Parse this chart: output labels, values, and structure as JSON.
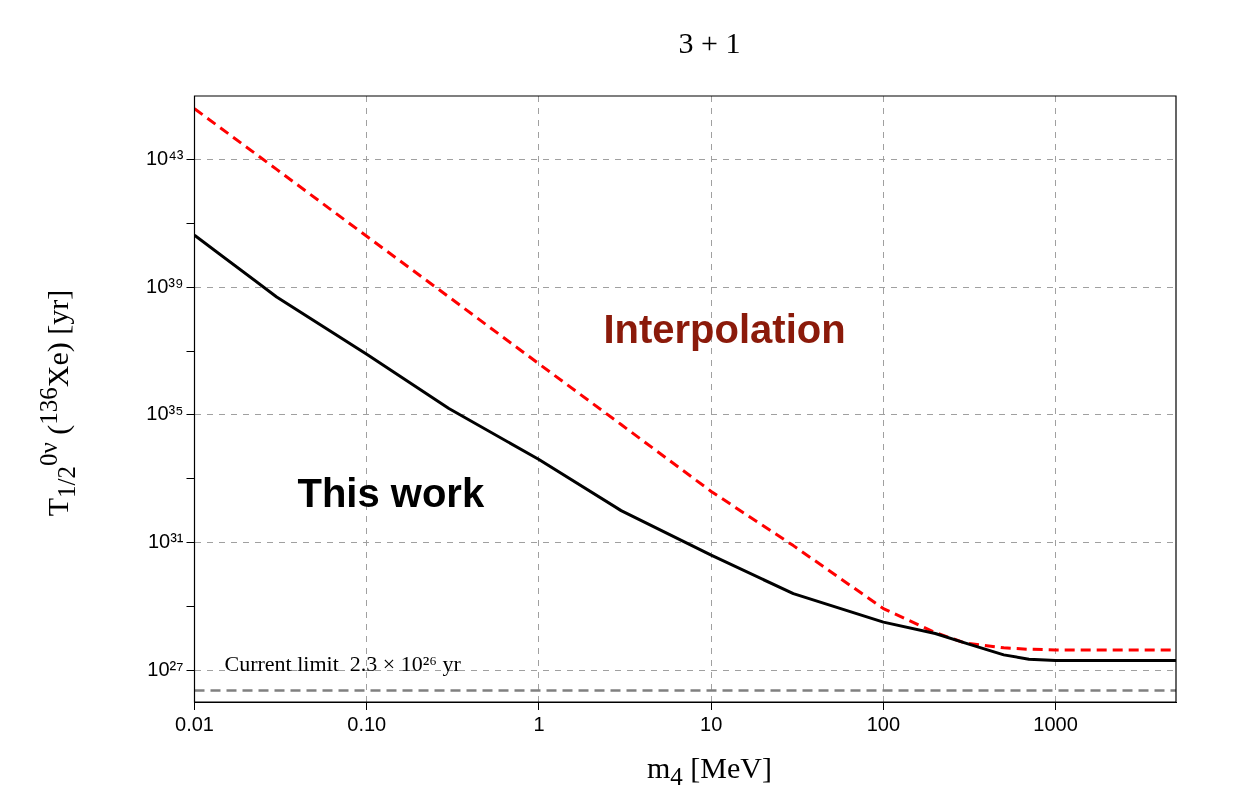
{
  "chart_data": {
    "type": "line",
    "title": "3 + 1",
    "xlabel": "m$_{4}$ [MeV]",
    "ylabel": "T$_{1/2}$$^{0ν}$ ($^{136}$Xe) [yr]",
    "log": "xy",
    "xlim": [
      0.01,
      5000
    ],
    "ylim": [
      1e+26,
      1e+45
    ],
    "xticks": [
      0.01,
      {
        "value": 0.1,
        "label": "0.10"
      },
      1,
      10,
      100,
      1000
    ],
    "yticks": [
      {
        "value": 1e+27,
        "label": "10²⁷"
      },
      {
        "value": 1e+29,
        "label": null
      },
      {
        "value": 1e+31,
        "label": "10³¹"
      },
      {
        "value": 1e+33,
        "label": null
      },
      {
        "value": 1e+35,
        "label": "10³⁵"
      },
      {
        "value": 1e+37,
        "label": null
      },
      {
        "value": 1e+39,
        "label": "10³⁹"
      },
      {
        "value": 1e+41,
        "label": null
      },
      {
        "value": 1e+43,
        "label": "10⁴³"
      }
    ],
    "grid": true,
    "legend": false,
    "series": [
      {
        "color": "#000000",
        "line_style": "solid",
        "x": [
          0.01,
          0.03,
          0.1,
          0.3,
          1,
          3,
          10,
          30,
          100,
          200,
          300,
          500,
          700,
          1000,
          2000,
          5000
        ],
        "values": [
          4.3e+40,
          5e+38,
          8e+36,
          1.6e+35,
          4e+33,
          1e+32,
          4e+30,
          2.5e+29,
          3.2e+28,
          1.4e+28,
          7e+27,
          3e+27,
          2.2e+27,
          2e+27,
          2e+27,
          2e+27
        ]
      },
      {
        "color": "#ff0000",
        "line_style": "dashed",
        "x": [
          0.01,
          0.03,
          0.1,
          0.3,
          1,
          3,
          10,
          30,
          100,
          200,
          300,
          500,
          700,
          1000,
          2000,
          5000
        ],
        "values": [
          4e+44,
          5e+42,
          4e+40,
          5e+38,
          4e+36,
          5e+34,
          4e+32,
          8e+30,
          8.5e+28,
          1.5e+28,
          7e+27,
          5e+27,
          4.5e+27,
          4.3e+27,
          4.3e+27,
          4.3e+27
        ]
      }
    ],
    "ref_lines": [
      {
        "axis": "y",
        "value": 2.3e+26,
        "label": "Current limit  2.3 × 10²⁶ yr",
        "color": "#808080",
        "line_style": "dashed"
      }
    ],
    "annotations": [
      "This work",
      "Interpolation"
    ]
  }
}
